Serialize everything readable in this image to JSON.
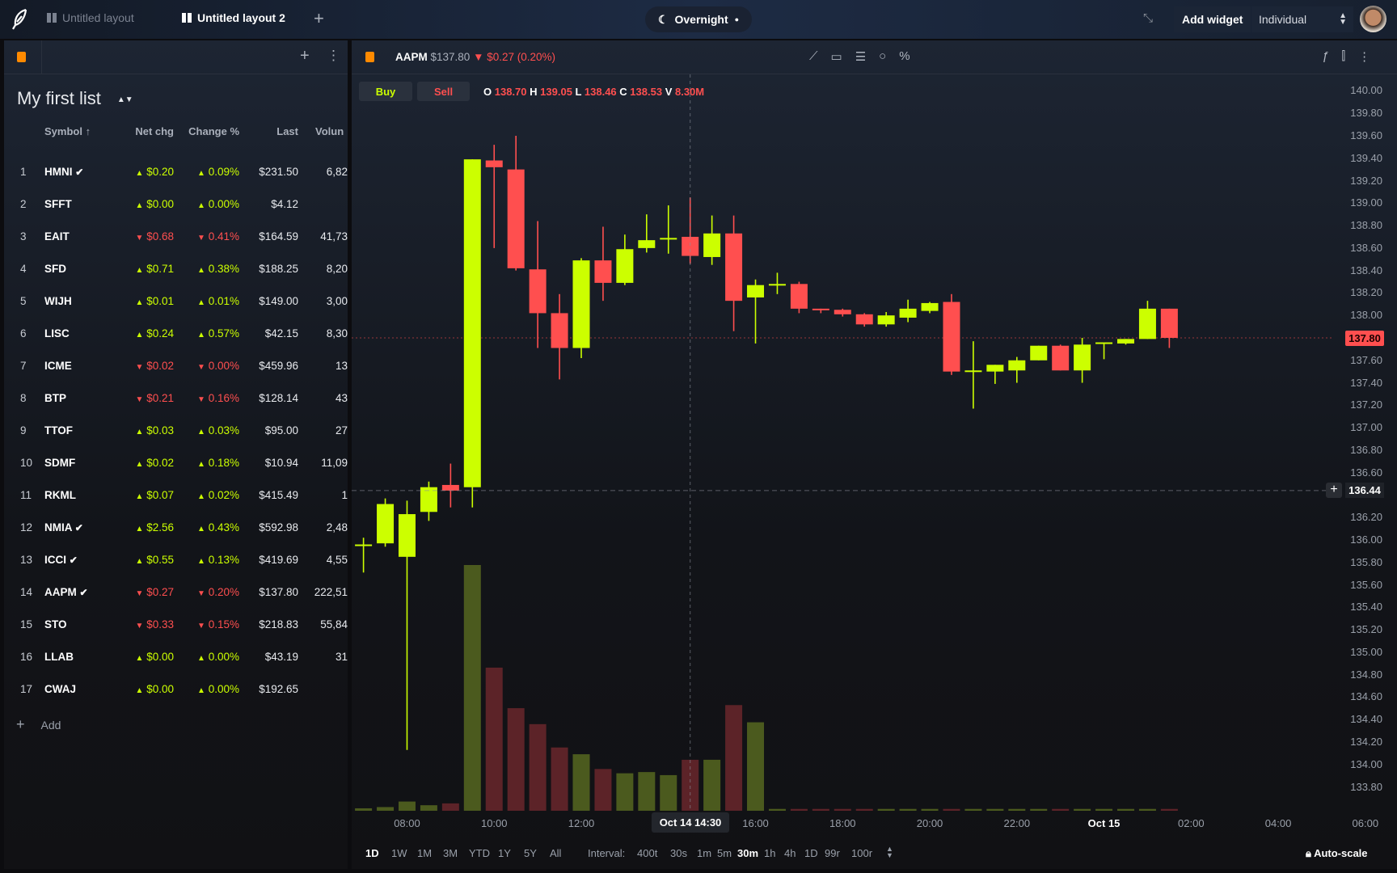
{
  "topbar": {
    "tabs": [
      {
        "label": "Untitled layout"
      },
      {
        "label": "Untitled layout 2"
      }
    ],
    "session": "Overnight",
    "add_widget": "Add widget",
    "account": "Individual"
  },
  "watchlist": {
    "title": "My first list",
    "columns": [
      "Symbol",
      "Net chg",
      "Change %",
      "Last",
      "Volun"
    ],
    "add_label": "Add",
    "rows": [
      {
        "n": "1",
        "sym": "HMNI",
        "verified": true,
        "dir": "up",
        "chg": "$0.20",
        "pct": "0.09%",
        "last": "$231.50",
        "vol": "6,82"
      },
      {
        "n": "2",
        "sym": "SFFT",
        "verified": false,
        "dir": "up",
        "chg": "$0.00",
        "pct": "0.00%",
        "last": "$4.12",
        "vol": ""
      },
      {
        "n": "3",
        "sym": "EAIT",
        "verified": false,
        "dir": "dn",
        "chg": "$0.68",
        "pct": "0.41%",
        "last": "$164.59",
        "vol": "41,73"
      },
      {
        "n": "4",
        "sym": "SFD",
        "verified": false,
        "dir": "up",
        "chg": "$0.71",
        "pct": "0.38%",
        "last": "$188.25",
        "vol": "8,20"
      },
      {
        "n": "5",
        "sym": "WIJH",
        "verified": false,
        "dir": "up",
        "chg": "$0.01",
        "pct": "0.01%",
        "last": "$149.00",
        "vol": "3,00"
      },
      {
        "n": "6",
        "sym": "LISC",
        "verified": false,
        "dir": "up",
        "chg": "$0.24",
        "pct": "0.57%",
        "last": "$42.15",
        "vol": "8,30"
      },
      {
        "n": "7",
        "sym": "ICME",
        "verified": false,
        "dir": "dn",
        "chg": "$0.02",
        "pct": "0.00%",
        "last": "$459.96",
        "vol": "13"
      },
      {
        "n": "8",
        "sym": "BTP",
        "verified": false,
        "dir": "dn",
        "chg": "$0.21",
        "pct": "0.16%",
        "last": "$128.14",
        "vol": "43"
      },
      {
        "n": "9",
        "sym": "TTOF",
        "verified": false,
        "dir": "up",
        "chg": "$0.03",
        "pct": "0.03%",
        "last": "$95.00",
        "vol": "27"
      },
      {
        "n": "10",
        "sym": "SDMF",
        "verified": false,
        "dir": "up",
        "chg": "$0.02",
        "pct": "0.18%",
        "last": "$10.94",
        "vol": "11,09"
      },
      {
        "n": "11",
        "sym": "RKML",
        "verified": false,
        "dir": "up",
        "chg": "$0.07",
        "pct": "0.02%",
        "last": "$415.49",
        "vol": "1"
      },
      {
        "n": "12",
        "sym": "NMIA",
        "verified": true,
        "dir": "up",
        "chg": "$2.56",
        "pct": "0.43%",
        "last": "$592.98",
        "vol": "2,48"
      },
      {
        "n": "13",
        "sym": "ICCI",
        "verified": true,
        "dir": "up",
        "chg": "$0.55",
        "pct": "0.13%",
        "last": "$419.69",
        "vol": "4,55"
      },
      {
        "n": "14",
        "sym": "AAPM",
        "verified": true,
        "dir": "dn",
        "chg": "$0.27",
        "pct": "0.20%",
        "last": "$137.80",
        "vol": "222,51"
      },
      {
        "n": "15",
        "sym": "STO",
        "verified": false,
        "dir": "dn",
        "chg": "$0.33",
        "pct": "0.15%",
        "last": "$218.83",
        "vol": "55,84"
      },
      {
        "n": "16",
        "sym": "LLAB",
        "verified": false,
        "dir": "up",
        "chg": "$0.00",
        "pct": "0.00%",
        "last": "$43.19",
        "vol": "31"
      },
      {
        "n": "17",
        "sym": "CWAJ",
        "verified": false,
        "dir": "up",
        "chg": "$0.00",
        "pct": "0.00%",
        "last": "$192.65",
        "vol": ""
      }
    ]
  },
  "chart": {
    "symbol": "AAPM",
    "price": "$137.80",
    "change": "$0.27 (0.20%)",
    "buy": "Buy",
    "sell": "Sell",
    "ohlc": {
      "o_label": "O",
      "o": "138.70",
      "h_label": "H",
      "h": "139.05",
      "l_label": "L",
      "l": "138.46",
      "c_label": "C",
      "c": "138.53",
      "v_label": "V",
      "v": "8.30M"
    },
    "last_price_tag": "137.80",
    "crosshair_price": "136.44",
    "crosshair_time": "Oct 14 14:30",
    "ranges": [
      "1D",
      "1W",
      "1M",
      "3M",
      "YTD",
      "1Y",
      "5Y",
      "All"
    ],
    "active_range": "1D",
    "interval_label": "Interval:",
    "intervals": [
      "400t",
      "30s",
      "1m",
      "5m",
      "30m",
      "1h",
      "4h",
      "1D",
      "99r",
      "100r"
    ],
    "active_interval": "30m",
    "autoscale": "Auto-scale"
  },
  "colors": {
    "up": "#ccff00",
    "down": "#ff4f4f",
    "accent": "#ff8a00"
  },
  "chart_data": {
    "type": "candlestick",
    "interval": "30m",
    "yticks": [
      "140.00",
      "139.80",
      "139.60",
      "139.40",
      "139.20",
      "139.00",
      "138.80",
      "138.60",
      "138.40",
      "138.20",
      "138.00",
      "137.80",
      "137.60",
      "137.40",
      "137.20",
      "137.00",
      "136.80",
      "136.60",
      "136.40",
      "136.20",
      "136.00",
      "135.80",
      "135.60",
      "135.40",
      "135.20",
      "135.00",
      "134.80",
      "134.60",
      "134.40",
      "134.20",
      "134.00",
      "133.80"
    ],
    "ylim": [
      133.7,
      140.1
    ],
    "xticks": [
      {
        "i": 2,
        "label": "08:00"
      },
      {
        "i": 6,
        "label": "10:00"
      },
      {
        "i": 10,
        "label": "12:00"
      },
      {
        "i": 18,
        "label": "16:00"
      },
      {
        "i": 22,
        "label": "18:00"
      },
      {
        "i": 26,
        "label": "20:00"
      },
      {
        "i": 30,
        "label": "22:00"
      },
      {
        "i": 34,
        "label": "Oct 15",
        "bold": true
      },
      {
        "i": 38,
        "label": "02:00"
      },
      {
        "i": 42,
        "label": "04:00"
      },
      {
        "i": 46,
        "label": "06:00"
      }
    ],
    "candles": [
      {
        "t": "07:00",
        "o": 135.95,
        "h": 136.02,
        "l": 135.71,
        "c": 135.96,
        "v": 0.4
      },
      {
        "t": "07:30",
        "o": 135.97,
        "h": 136.37,
        "l": 135.94,
        "c": 136.32,
        "v": 0.6
      },
      {
        "t": "08:00",
        "o": 135.85,
        "h": 136.35,
        "l": 134.13,
        "c": 136.23,
        "v": 1.5
      },
      {
        "t": "08:30",
        "o": 136.25,
        "h": 136.52,
        "l": 136.17,
        "c": 136.47,
        "v": 0.9
      },
      {
        "t": "09:00",
        "o": 136.49,
        "h": 136.68,
        "l": 136.29,
        "c": 136.44,
        "v": 1.2
      },
      {
        "t": "09:30",
        "o": 136.47,
        "h": 139.39,
        "l": 136.29,
        "c": 139.39,
        "v": 40.0
      },
      {
        "t": "10:00",
        "o": 139.38,
        "h": 139.52,
        "l": 138.6,
        "c": 139.32,
        "v": 23.3
      },
      {
        "t": "10:30",
        "o": 139.3,
        "h": 139.6,
        "l": 138.4,
        "c": 138.42,
        "v": 16.7
      },
      {
        "t": "11:00",
        "o": 138.41,
        "h": 138.84,
        "l": 137.71,
        "c": 138.02,
        "v": 14.1
      },
      {
        "t": "11:30",
        "o": 138.02,
        "h": 138.19,
        "l": 137.43,
        "c": 137.71,
        "v": 10.3
      },
      {
        "t": "12:00",
        "o": 137.71,
        "h": 138.51,
        "l": 137.62,
        "c": 138.49,
        "v": 9.2
      },
      {
        "t": "12:30",
        "o": 138.49,
        "h": 138.79,
        "l": 138.13,
        "c": 138.29,
        "v": 6.8
      },
      {
        "t": "13:00",
        "o": 138.29,
        "h": 138.72,
        "l": 138.27,
        "c": 138.59,
        "v": 6.1
      },
      {
        "t": "13:30",
        "o": 138.6,
        "h": 138.9,
        "l": 138.56,
        "c": 138.67,
        "v": 6.3
      },
      {
        "t": "14:00",
        "o": 138.68,
        "h": 138.98,
        "l": 138.55,
        "c": 138.69,
        "v": 5.8
      },
      {
        "t": "14:30",
        "o": 138.7,
        "h": 139.05,
        "l": 138.46,
        "c": 138.53,
        "v": 8.3
      },
      {
        "t": "15:00",
        "o": 138.52,
        "h": 138.89,
        "l": 138.45,
        "c": 138.73,
        "v": 8.3
      },
      {
        "t": "15:30",
        "o": 138.73,
        "h": 138.89,
        "l": 137.86,
        "c": 138.13,
        "v": 17.2
      },
      {
        "t": "16:00",
        "o": 138.16,
        "h": 138.32,
        "l": 137.75,
        "c": 138.27,
        "v": 14.4
      },
      {
        "t": "16:30",
        "o": 138.27,
        "h": 138.38,
        "l": 138.19,
        "c": 138.28,
        "v": 0.3
      },
      {
        "t": "17:00",
        "o": 138.28,
        "h": 138.3,
        "l": 138.02,
        "c": 138.06,
        "v": 0.3
      },
      {
        "t": "17:30",
        "o": 138.06,
        "h": 138.06,
        "l": 138.02,
        "c": 138.05,
        "v": 0.3
      },
      {
        "t": "18:00",
        "o": 138.05,
        "h": 138.06,
        "l": 137.99,
        "c": 138.01,
        "v": 0.3
      },
      {
        "t": "18:30",
        "o": 138.01,
        "h": 138.02,
        "l": 137.9,
        "c": 137.92,
        "v": 0.3
      },
      {
        "t": "19:00",
        "o": 137.92,
        "h": 138.03,
        "l": 137.9,
        "c": 138.0,
        "v": 0.3
      },
      {
        "t": "19:30",
        "o": 137.98,
        "h": 138.14,
        "l": 137.94,
        "c": 138.06,
        "v": 0.3
      },
      {
        "t": "20:00",
        "o": 138.04,
        "h": 138.12,
        "l": 138.02,
        "c": 138.11,
        "v": 0.3
      },
      {
        "t": "20:30",
        "o": 138.12,
        "h": 138.19,
        "l": 137.47,
        "c": 137.5,
        "v": 0.3
      },
      {
        "t": "21:00",
        "o": 137.5,
        "h": 137.77,
        "l": 137.17,
        "c": 137.51,
        "v": 0.3
      },
      {
        "t": "21:30",
        "o": 137.5,
        "h": 137.56,
        "l": 137.39,
        "c": 137.56,
        "v": 0.3
      },
      {
        "t": "22:00",
        "o": 137.51,
        "h": 137.63,
        "l": 137.4,
        "c": 137.6,
        "v": 0.3
      },
      {
        "t": "22:30",
        "o": 137.6,
        "h": 137.73,
        "l": 137.6,
        "c": 137.73,
        "v": 0.3
      },
      {
        "t": "23:00",
        "o": 137.73,
        "h": 137.74,
        "l": 137.51,
        "c": 137.51,
        "v": 0.3
      },
      {
        "t": "23:30",
        "o": 137.51,
        "h": 137.8,
        "l": 137.4,
        "c": 137.74,
        "v": 0.3
      },
      {
        "t": "00:00",
        "o": 137.75,
        "h": 137.75,
        "l": 137.61,
        "c": 137.76,
        "v": 0.3
      },
      {
        "t": "00:30",
        "o": 137.75,
        "h": 137.79,
        "l": 137.74,
        "c": 137.79,
        "v": 0.3
      },
      {
        "t": "01:00",
        "o": 137.79,
        "h": 138.13,
        "l": 137.79,
        "c": 138.06,
        "v": 0.3
      },
      {
        "t": "01:30",
        "o": 138.06,
        "h": 138.06,
        "l": 137.71,
        "c": 137.8,
        "v": 0.3
      }
    ]
  }
}
